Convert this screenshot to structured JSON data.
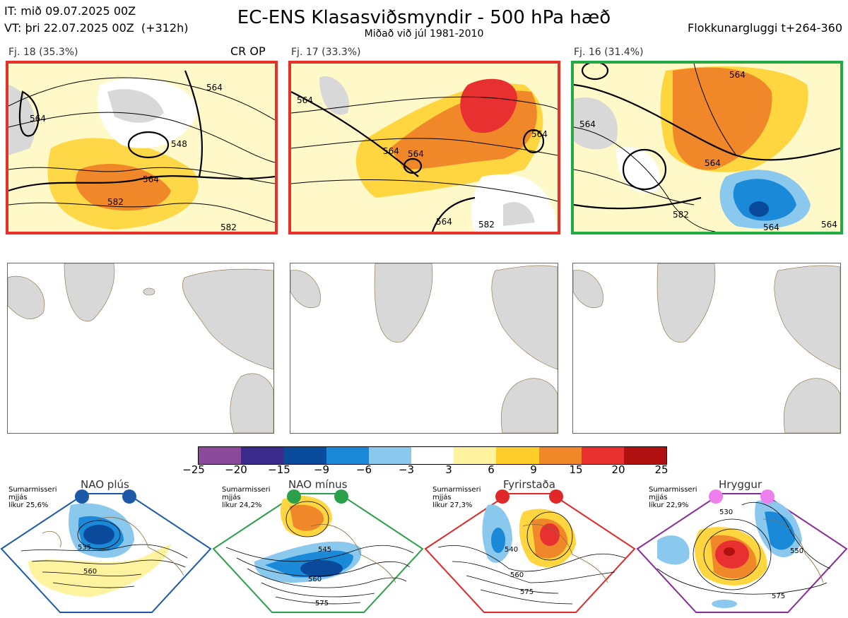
{
  "header": {
    "init_time": "IT: mið 09.07.2025 00Z",
    "valid_time": "VT: þri 22.07.2025 00Z  (+312h)",
    "title": "EC-ENS Klasasviðsmyndir - 500 hPa hæð",
    "subtitle": "Miðað við júl 1981-2010",
    "window": "Flokkunargluggi t+264-360"
  },
  "colors": {
    "red_frame": "#e8302a",
    "green_frame": "#22aa44",
    "blue_regime": "#1a5aa8",
    "green_regime": "#2aa04a",
    "red_regime": "#e02828",
    "purple_regime": "#8a2a9a",
    "land": "#d8d8d8",
    "coast": "#8a6a3a"
  },
  "clusters": [
    {
      "label": "Fj. 18 (35.3%)",
      "extra": "CR OP",
      "contours": [
        "564",
        "548",
        "564",
        "582",
        "564",
        "582"
      ],
      "frame": "red"
    },
    {
      "label": "Fj. 17 (33.3%)",
      "extra": "",
      "contours": [
        "564",
        "564",
        "564",
        "564",
        "564",
        "582"
      ],
      "frame": "red"
    },
    {
      "label": "Fj. 16 (31.4%)",
      "extra": "",
      "contours": [
        "564",
        "564",
        "564",
        "582",
        "564",
        "564"
      ],
      "frame": "green"
    }
  ],
  "colorbar": {
    "ticks": [
      "−25",
      "−20",
      "−15",
      "−9",
      "−6",
      "−3",
      "3",
      "6",
      "9",
      "15",
      "20",
      "25"
    ],
    "colors": [
      "#8a4a9a",
      "#3a2a8a",
      "#0a4a9a",
      "#1a8ad8",
      "#8ac8ee",
      "#ffffff",
      "#fff3a0",
      "#ffce2a",
      "#f0882a",
      "#e83030",
      "#b01010"
    ]
  },
  "regimes": [
    {
      "name": "NAO plús",
      "season": "Sumarmisseri",
      "quality": "mjjás",
      "prob": "líkur 25,6%",
      "contours": [
        "535",
        "560"
      ]
    },
    {
      "name": "NAO mínus",
      "season": "Sumarmisseri",
      "quality": "mjjás",
      "prob": "líkur 24,2%",
      "contours": [
        "545",
        "560",
        "575"
      ]
    },
    {
      "name": "Fyrirstaða",
      "season": "Sumarmisseri",
      "quality": "mjjás",
      "prob": "líkur 27,3%",
      "contours": [
        "540",
        "560",
        "575"
      ]
    },
    {
      "name": "Hryggur",
      "season": "Sumarmisseri",
      "quality": "mjjás",
      "prob": "líkur 22,9%",
      "contours": [
        "530",
        "550",
        "575"
      ]
    }
  ]
}
